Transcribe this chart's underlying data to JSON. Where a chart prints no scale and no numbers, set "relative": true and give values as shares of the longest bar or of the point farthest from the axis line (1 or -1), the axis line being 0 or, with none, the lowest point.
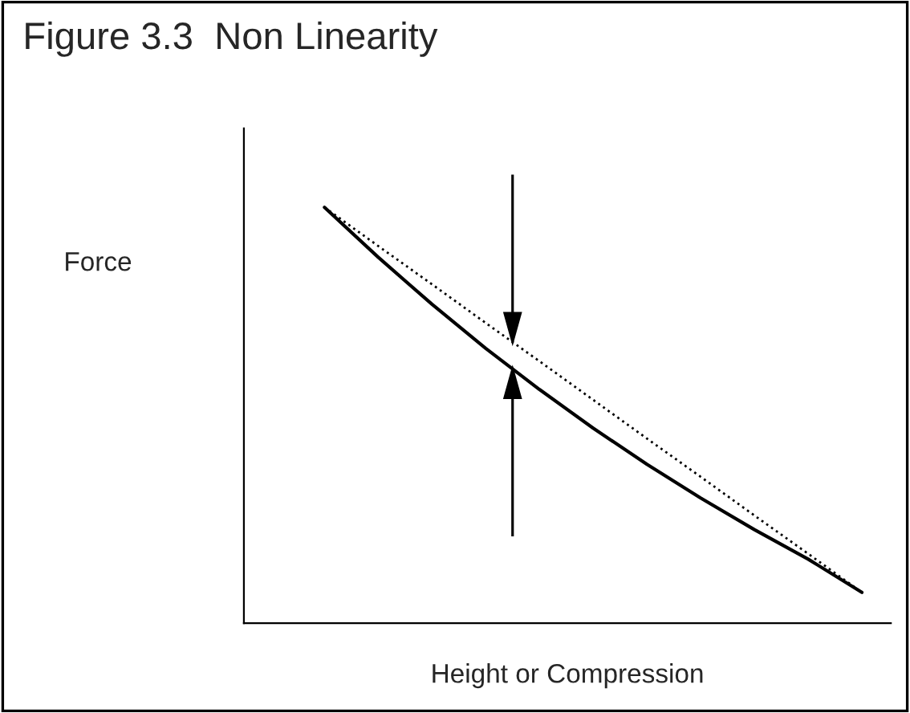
{
  "chart_data": {
    "type": "line",
    "title": "Figure 3.3  Non Linearity",
    "xlabel": "Height or Compression",
    "ylabel": "Force",
    "relative": true,
    "marker": "none",
    "categories": [
      null,
      null,
      null,
      null,
      null,
      null,
      null,
      null,
      null,
      null,
      null
    ],
    "series": [
      {
        "color": "#000000",
        "line_style": "solid",
        "values": [
          1,
          0.88,
          0.767,
          0.661,
          0.562,
          0.469,
          0.382,
          0.301,
          0.225,
          0.154,
          0.074
        ]
      },
      {
        "color": "#000000",
        "line_style": "dotted",
        "values": [
          1,
          0.907,
          0.815,
          0.722,
          0.63,
          0.537,
          0.444,
          0.352,
          0.259,
          0.167,
          0.074
        ]
      }
    ]
  }
}
